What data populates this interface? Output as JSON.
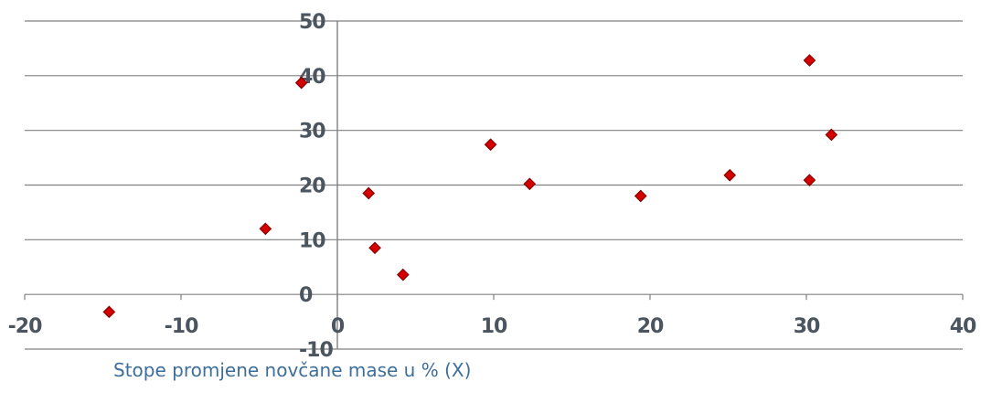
{
  "chart_data": {
    "type": "scatter",
    "xlabel": "Stope promjene novčane mase u % (X)",
    "ylabel": "",
    "xlim": [
      -20,
      40
    ],
    "ylim": [
      -10,
      50
    ],
    "x_ticks": [
      -20,
      -10,
      0,
      10,
      20,
      30,
      40
    ],
    "y_ticks": [
      50,
      40,
      30,
      20,
      10,
      0,
      -10
    ],
    "grid": true,
    "point_color": "#d40000",
    "series": [
      {
        "points": [
          {
            "x": -14.6,
            "y": -3.2
          },
          {
            "x": -4.6,
            "y": 12.0
          },
          {
            "x": -2.3,
            "y": 38.7
          },
          {
            "x": 2.0,
            "y": 18.5
          },
          {
            "x": 2.4,
            "y": 8.5
          },
          {
            "x": 4.2,
            "y": 3.6
          },
          {
            "x": 9.8,
            "y": 27.4
          },
          {
            "x": 12.3,
            "y": 20.2
          },
          {
            "x": 19.4,
            "y": 18.0
          },
          {
            "x": 25.1,
            "y": 21.8
          },
          {
            "x": 30.2,
            "y": 20.9
          },
          {
            "x": 30.2,
            "y": 42.8
          },
          {
            "x": 31.6,
            "y": 29.2
          }
        ]
      }
    ]
  }
}
